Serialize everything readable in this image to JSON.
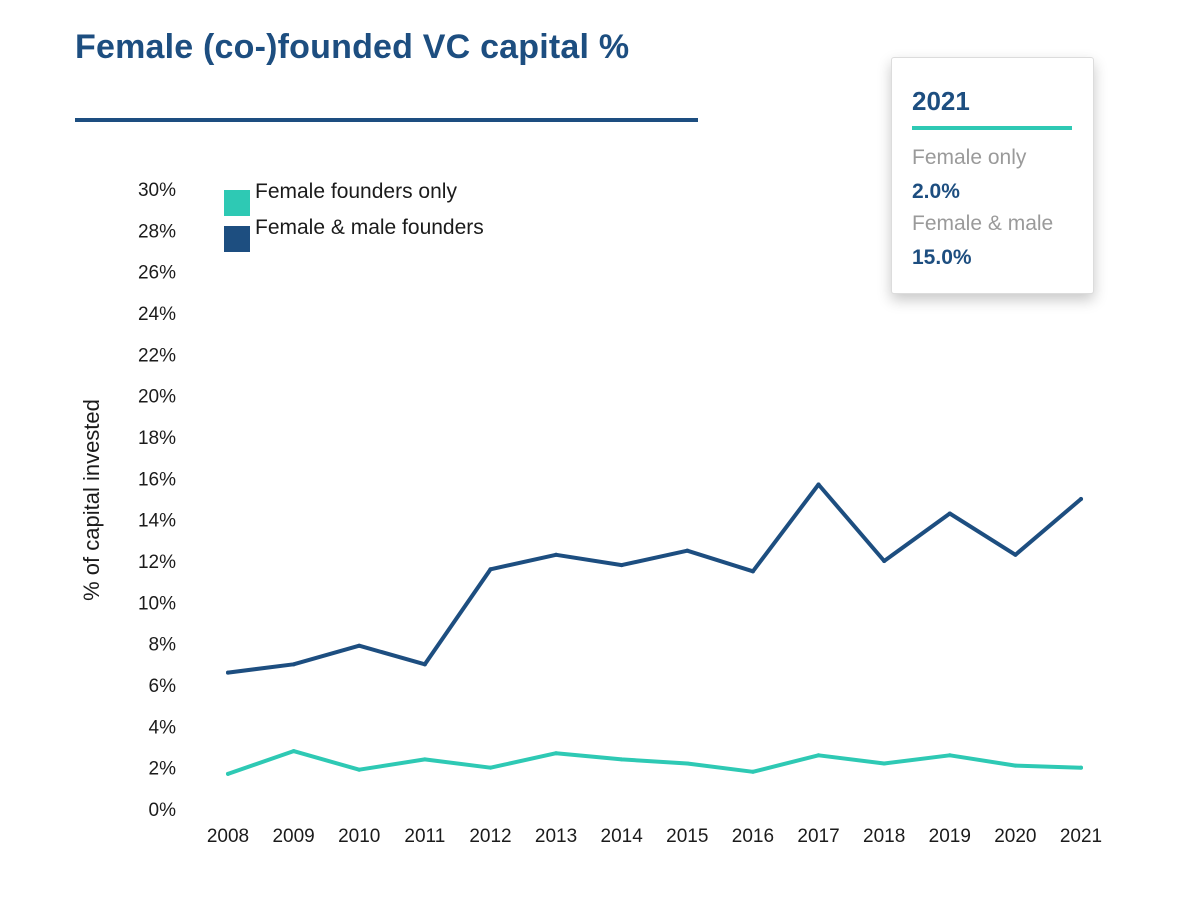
{
  "title": "Female (co-)founded VC capital %",
  "colors": {
    "female_only": "#2ec9b4",
    "female_male": "#1d4e80",
    "title": "#1d4e80"
  },
  "tooltip": {
    "year": "2021",
    "female_only_label": "Female only",
    "female_only_value": "2.0%",
    "female_male_label": "Female & male",
    "female_male_value": "15.0%"
  },
  "chart_data": {
    "type": "line",
    "title": "Female (co-)founded VC capital %",
    "xlabel": "",
    "ylabel": "% of capital invested",
    "x": [
      "2008",
      "2009",
      "2010",
      "2011",
      "2012",
      "2013",
      "2014",
      "2015",
      "2016",
      "2017",
      "2018",
      "2019",
      "2020",
      "2021"
    ],
    "ylim": [
      0,
      30
    ],
    "yticks": [
      "0%",
      "2%",
      "4%",
      "6%",
      "8%",
      "10%",
      "12%",
      "14%",
      "16%",
      "18%",
      "20%",
      "22%",
      "24%",
      "26%",
      "28%",
      "30%"
    ],
    "grid": false,
    "legend": "top-left",
    "series": [
      {
        "name": "Female founders only",
        "color": "#2ec9b4",
        "values": [
          1.7,
          2.8,
          1.9,
          2.4,
          2.0,
          2.7,
          2.4,
          2.2,
          1.8,
          2.6,
          2.2,
          2.6,
          2.1,
          2.0
        ]
      },
      {
        "name": "Female & male founders",
        "color": "#1d4e80",
        "values": [
          6.6,
          7.0,
          7.9,
          7.0,
          11.6,
          12.3,
          11.8,
          12.5,
          11.5,
          15.7,
          12.0,
          14.3,
          12.3,
          15.0
        ]
      }
    ]
  }
}
